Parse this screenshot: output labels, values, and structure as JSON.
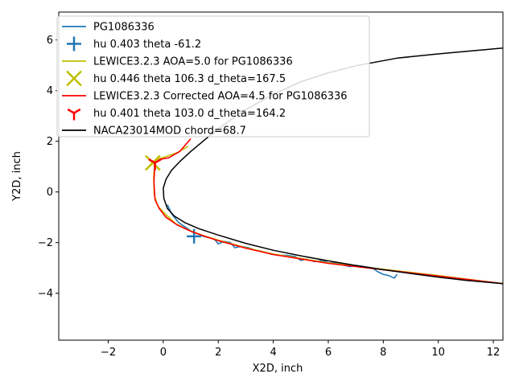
{
  "chart_data": {
    "type": "line",
    "xlabel": "X2D, inch",
    "ylabel": "Y2D, inch",
    "xlim": [
      -3.8,
      12.35
    ],
    "ylim": [
      -5.85,
      7.1
    ],
    "xticks": [
      -2,
      0,
      2,
      4,
      6,
      8,
      10,
      12
    ],
    "yticks": [
      -4,
      -2,
      0,
      2,
      4,
      6
    ],
    "grid": false,
    "legend_position": "top-left",
    "colors": {
      "ice_trace": "#1f77b4",
      "lewice": "#bfbf00",
      "lewice_corrected": "#ff0000",
      "airfoil": "#000000"
    },
    "series": [
      {
        "name": "PG1086336",
        "style": "line",
        "color": "#1f77b4",
        "x": [
          0.15,
          0.3,
          0.55,
          0.75,
          0.95,
          1.05,
          1.25,
          1.45,
          1.65,
          1.85,
          2.0,
          2.2,
          2.45,
          2.6,
          2.85,
          3.1,
          3.35,
          3.6,
          3.9,
          4.2,
          4.5,
          4.8,
          5.0,
          5.2,
          5.5,
          5.8,
          6.0,
          6.3,
          6.6,
          6.8,
          7.0,
          7.3,
          7.6,
          7.8,
          8.0,
          8.2,
          8.4,
          8.5
        ],
        "y": [
          -0.5,
          -0.85,
          -1.2,
          -1.35,
          -1.5,
          -1.58,
          -1.65,
          -1.75,
          -1.8,
          -1.85,
          -2.05,
          -1.95,
          -2.0,
          -2.2,
          -2.15,
          -2.2,
          -2.3,
          -2.35,
          -2.45,
          -2.5,
          -2.5,
          -2.55,
          -2.7,
          -2.65,
          -2.75,
          -2.7,
          -2.8,
          -2.8,
          -2.9,
          -2.95,
          -2.9,
          -2.95,
          -3.0,
          -3.15,
          -3.25,
          -3.3,
          -3.4,
          -3.25
        ]
      },
      {
        "name": "hu 0.403 theta -61.2",
        "style": "marker-plus",
        "color": "#1f77b4",
        "x": [
          1.12
        ],
        "y": [
          -1.75
        ]
      },
      {
        "name": "LEWICE3.2.3 AOA=5.0 for PG1086336",
        "style": "line",
        "color": "#bfbf00",
        "x": [
          0.9,
          0.5,
          0.1,
          -0.3,
          -0.35,
          -0.33,
          -0.2,
          0.1,
          0.45,
          0.9,
          1.4,
          2.0,
          3.0,
          4.0,
          6.0,
          8.0,
          10.0,
          12.35
        ],
        "y": [
          1.8,
          1.55,
          1.4,
          1.25,
          0.6,
          -0.1,
          -0.55,
          -0.9,
          -1.25,
          -1.5,
          -1.7,
          -1.9,
          -2.2,
          -2.45,
          -2.8,
          -3.05,
          -3.3,
          -3.62
        ]
      },
      {
        "name": "hu 0.446 theta 106.3 d_theta=167.5",
        "style": "marker-x",
        "color": "#bfbf00",
        "x": [
          -0.38
        ],
        "y": [
          1.15
        ]
      },
      {
        "name": "LEWICE3.2.3 Corrected AOA=4.5 for PG1086336",
        "style": "line",
        "color": "#ff0000",
        "x": [
          1.0,
          0.6,
          0.2,
          -0.05,
          -0.3,
          -0.34,
          -0.3,
          -0.15,
          0.1,
          0.5,
          1.0,
          1.5,
          2.0,
          3.0,
          4.0,
          6.0,
          8.0,
          10.0,
          12.35
        ],
        "y": [
          2.1,
          1.6,
          1.35,
          1.3,
          1.15,
          0.4,
          -0.3,
          -0.65,
          -1.0,
          -1.3,
          -1.55,
          -1.75,
          -1.92,
          -2.22,
          -2.47,
          -2.82,
          -3.07,
          -3.32,
          -3.62
        ]
      },
      {
        "name": "hu 0.401 theta 103.0 d_theta=164.2",
        "style": "marker-tri",
        "color": "#ff0000",
        "x": [
          -0.3
        ],
        "y": [
          1.15
        ]
      },
      {
        "name": "NACA23014MOD chord=68.7",
        "style": "line",
        "color": "#000000",
        "x": [
          12.35,
          10.0,
          8.5,
          7.0,
          6.0,
          5.0,
          4.0,
          3.0,
          2.0,
          1.5,
          1.0,
          0.6,
          0.3,
          0.1,
          0.0,
          0.02,
          0.15,
          0.4,
          0.8,
          1.3,
          2.0,
          3.0,
          4.0,
          5.0,
          6.0,
          7.0,
          8.0,
          9.0,
          10.0,
          11.0,
          12.35
        ],
        "y": [
          5.68,
          5.45,
          5.28,
          4.98,
          4.7,
          4.35,
          3.85,
          3.25,
          2.5,
          2.05,
          1.6,
          1.2,
          0.85,
          0.5,
          0.15,
          -0.25,
          -0.65,
          -0.95,
          -1.22,
          -1.45,
          -1.7,
          -2.03,
          -2.3,
          -2.52,
          -2.72,
          -2.9,
          -3.07,
          -3.22,
          -3.36,
          -3.49,
          -3.62
        ]
      }
    ]
  }
}
